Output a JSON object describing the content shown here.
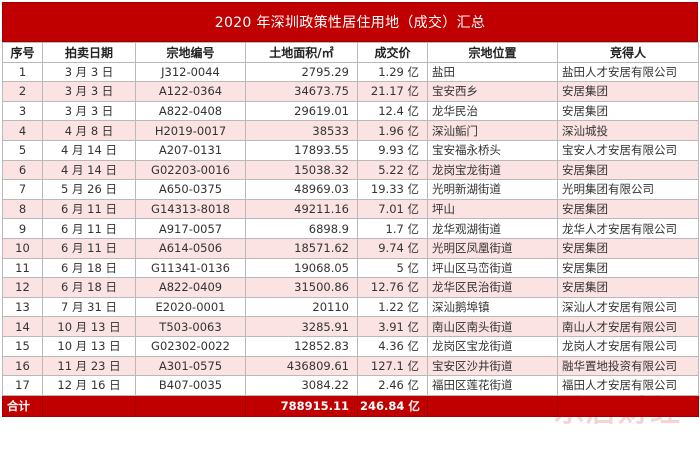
{
  "title": "2020 年深圳政策性居住用地（成交）汇总",
  "headers": [
    "序号",
    "拍卖日期",
    "宗地编号",
    "土地面积/㎡",
    "成交价",
    "宗地位置",
    "竞得人"
  ],
  "rows": [
    [
      "1",
      "3 月 3 日",
      "J312-0044",
      "2795.29",
      "1.29 亿",
      "盐田",
      "盐田人才安居有限公司"
    ],
    [
      "2",
      "3 月 3 日",
      "A122-0364",
      "34673.75",
      "21.17 亿",
      "宝安西乡",
      "安居集团"
    ],
    [
      "3",
      "3 月 3 日",
      "A822-0408",
      "29619.01",
      "12.4 亿",
      "龙华民治",
      "安居集团"
    ],
    [
      "4",
      "4 月 8 日",
      "H2019-0017",
      "38533",
      "1.96 亿",
      "深汕鲘门",
      "深汕城投"
    ],
    [
      "5",
      "4 月 14 日",
      "A207-0131",
      "17893.55",
      "9.93 亿",
      "宝安福永桥头",
      "宝安人才安居有限公司"
    ],
    [
      "6",
      "4 月 14 日",
      "G02203-0016",
      "15038.32",
      "5.22 亿",
      "龙岗宝龙街道",
      "安居集团"
    ],
    [
      "7",
      "5 月 26 日",
      "A650-0375",
      "48969.03",
      "19.33 亿",
      "光明新湖街道",
      "光明集团有限公司"
    ],
    [
      "8",
      "6 月 11 日",
      "G14313-8018",
      "49211.16",
      "7.01 亿",
      "坪山",
      "安居集团"
    ],
    [
      "9",
      "6 月 11 日",
      "A917-0057",
      "6898.9",
      "1.7 亿",
      "龙华观湖街道",
      "龙华人才安居有限公司"
    ],
    [
      "10",
      "6 月 11 日",
      "A614-0506",
      "18571.62",
      "9.74 亿",
      "光明区凤凰街道",
      "安居集团"
    ],
    [
      "11",
      "6 月 18 日",
      "G11341-0136",
      "19068.05",
      "5 亿",
      "坪山区马峦街道",
      "安居集团"
    ],
    [
      "12",
      "6 月 18 日",
      "A822-0409",
      "31500.86",
      "12.76 亿",
      "龙华区民治街道",
      "安居集团"
    ],
    [
      "13",
      "7 月 31 日",
      "E2020-0001",
      "20110",
      "1.22 亿",
      "深汕鹅埠镇",
      "深汕人才安居有限公司"
    ],
    [
      "14",
      "10 月 13 日",
      "T503-0063",
      "3285.91",
      "3.91 亿",
      "南山区南头街道",
      "南山人才安居有限公司"
    ],
    [
      "15",
      "10 月 13 日",
      "G02302-0022",
      "12852.83",
      "4.36 亿",
      "龙岗区宝龙街道",
      "龙岗人才安居有限公司"
    ],
    [
      "16",
      "11 月 23 日",
      "A301-0575",
      "436809.61",
      "127.1 亿",
      "宝安区沙井街道",
      "融华置地投资有限公司"
    ],
    [
      "17",
      "12 月 16 日",
      "B407-0035",
      "3084.22",
      "2.46 亿",
      "福田区莲花街道",
      "福田人才安居有限公司"
    ]
  ],
  "total": {
    "label": "合计",
    "area": "788915.11",
    "price": "246.84 亿"
  },
  "watermark": "乐居财经",
  "colors": {
    "accent": "#c00000",
    "stripe": "#fbe3e3",
    "border": "#b9b9b9"
  }
}
